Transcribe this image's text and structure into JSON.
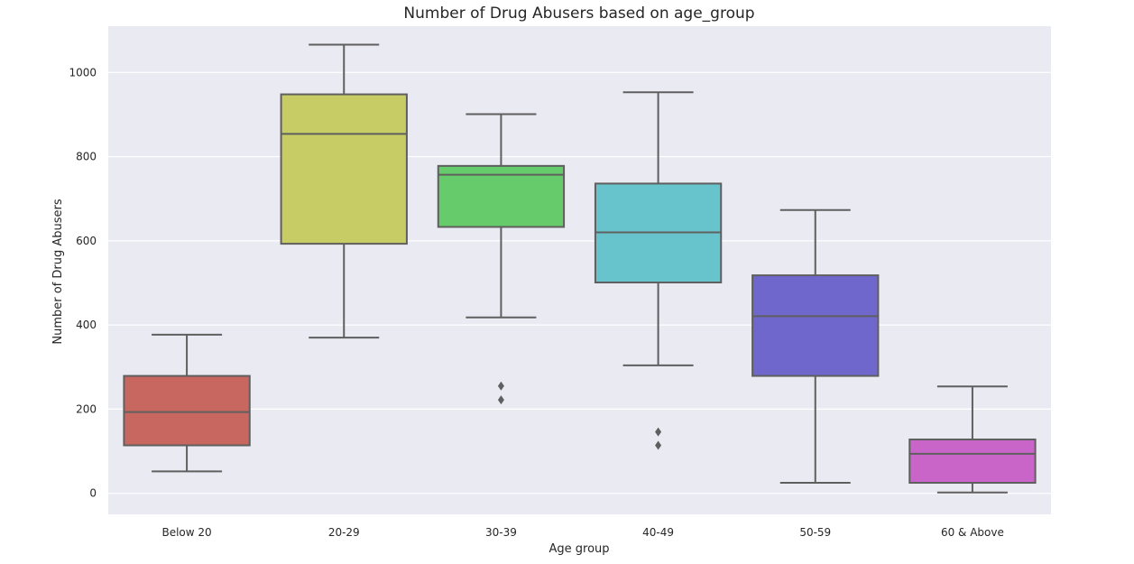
{
  "chart_data": {
    "type": "box",
    "title": "Number of Drug Abusers based on age_group",
    "xlabel": "Age group",
    "ylabel": "Number of Drug Abusers",
    "ylim": [
      -50,
      1110
    ],
    "yticks": [
      0,
      200,
      400,
      600,
      800,
      1000
    ],
    "grid": true,
    "background_color": "#eaeaf2",
    "whisker_color": "#5f5f5f",
    "categories": [
      "Below 20",
      "20-29",
      "30-39",
      "40-49",
      "50-59",
      "60 & Above"
    ],
    "boxes": [
      {
        "category": "Below 20",
        "color": "#c8675f",
        "whisker_low": 52,
        "q1": 114,
        "median": 193,
        "q3": 279,
        "whisker_high": 377,
        "outliers": []
      },
      {
        "category": "20-29",
        "color": "#c7cd64",
        "whisker_low": 370,
        "q1": 593,
        "median": 854,
        "q3": 948,
        "whisker_high": 1066,
        "outliers": []
      },
      {
        "category": "30-39",
        "color": "#66cc6b",
        "whisker_low": 418,
        "q1": 633,
        "median": 757,
        "q3": 778,
        "whisker_high": 901,
        "outliers": [
          255,
          222
        ]
      },
      {
        "category": "40-49",
        "color": "#68c4cc",
        "whisker_low": 304,
        "q1": 501,
        "median": 620,
        "q3": 736,
        "whisker_high": 953,
        "outliers": [
          146,
          114
        ]
      },
      {
        "category": "50-59",
        "color": "#7067cd",
        "whisker_low": 25,
        "q1": 279,
        "median": 421,
        "q3": 518,
        "whisker_high": 673,
        "outliers": []
      },
      {
        "category": "60 & Above",
        "color": "#c965c9",
        "whisker_low": 2,
        "q1": 25,
        "median": 94,
        "q3": 128,
        "whisker_high": 254,
        "outliers": []
      }
    ]
  }
}
